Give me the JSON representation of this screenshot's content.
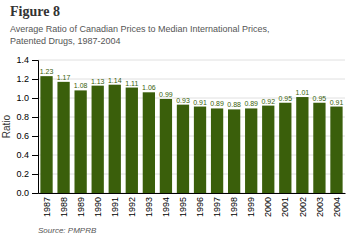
{
  "chart_data": {
    "type": "bar",
    "title": "Figure 8",
    "subtitle": [
      "Average Ratio of Canadian Prices to Median International Prices,",
      "Patented Drugs, 1987-2004"
    ],
    "annotations": [
      "Source: PMPRB"
    ],
    "ylabel": "Ratio",
    "categories": [
      "1987",
      "1988",
      "1989",
      "1990",
      "1991",
      "1992",
      "1993",
      "1994",
      "1995",
      "1996",
      "1997",
      "1998",
      "1999",
      "2000",
      "2001",
      "2002",
      "2003",
      "2004"
    ],
    "values": [
      1.23,
      1.17,
      1.08,
      1.13,
      1.14,
      1.11,
      1.06,
      0.99,
      0.93,
      0.91,
      0.89,
      0.88,
      0.89,
      0.92,
      0.95,
      1.01,
      0.95,
      0.91
    ],
    "color": "#3a5f0b",
    "ylim": [
      0.0,
      1.4
    ],
    "yticks": [
      {
        "value": 0.0,
        "label": "0.0"
      },
      0.2,
      0.4,
      0.6,
      0.8,
      {
        "value": 1.0,
        "label": "1.0"
      },
      1.2,
      1.4
    ],
    "grid": true,
    "data_labels": true
  }
}
